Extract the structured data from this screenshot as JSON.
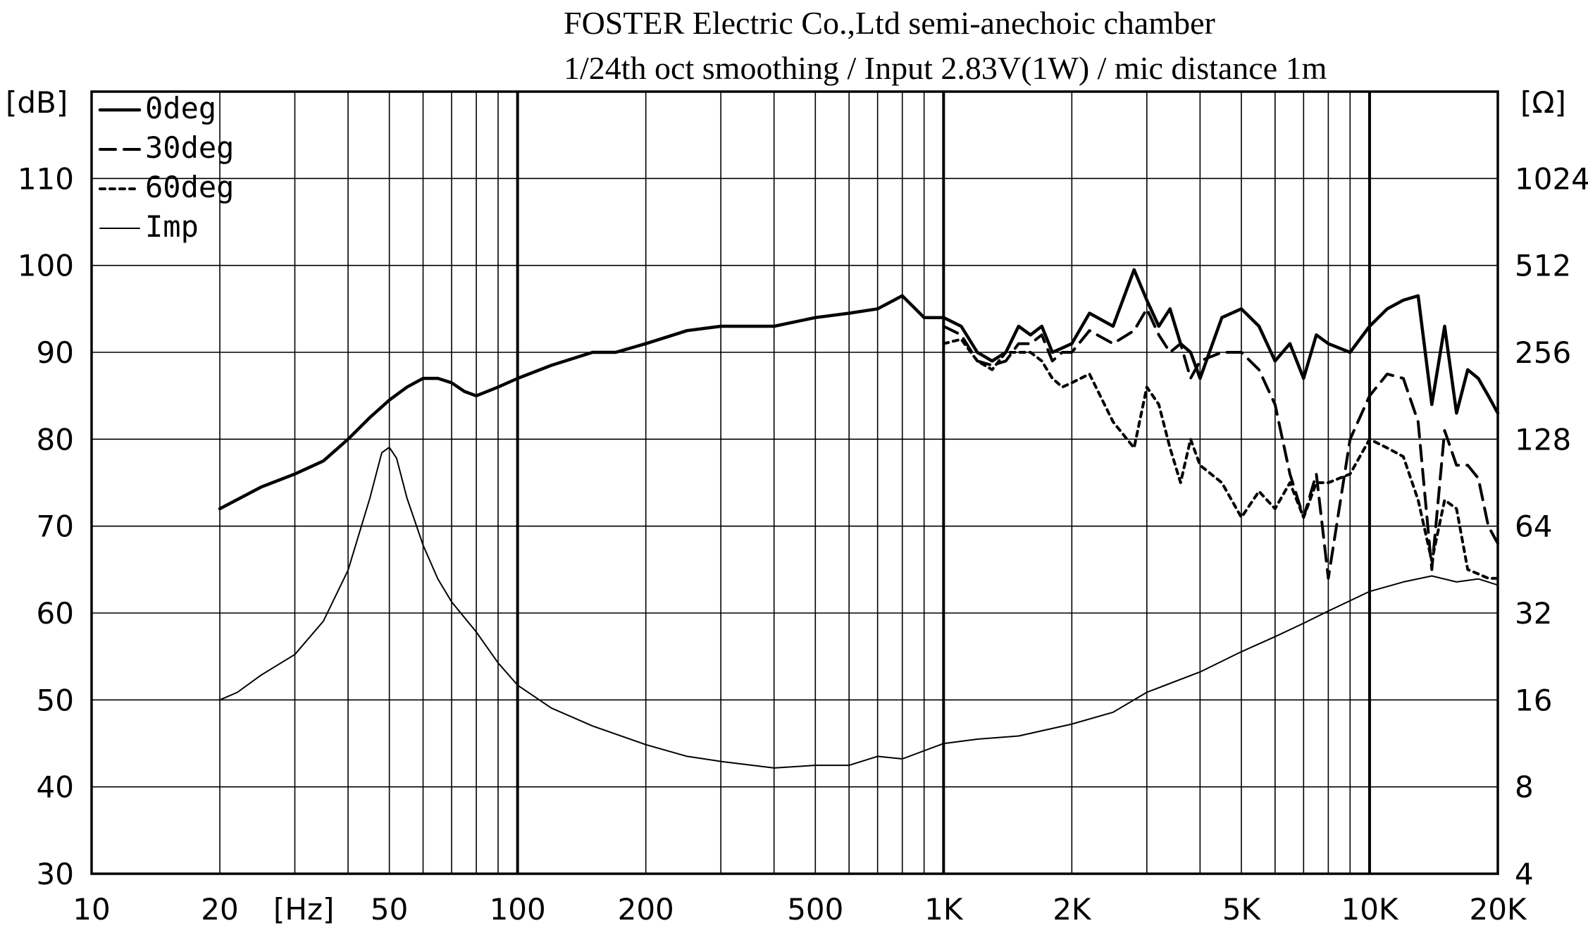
{
  "chart_data": {
    "type": "line",
    "title": "FOSTER Electric Co.,Ltd  semi-anechoic chamber",
    "subtitle": "1/24th oct smoothing / Input 2.83V(1W) / mic distance 1m",
    "xlabel": "[Hz]",
    "ylabel": "[dB]",
    "y2label": "[Ω]",
    "x_scale": "log",
    "xlim": [
      10,
      20000
    ],
    "ylim": [
      30,
      120
    ],
    "y2lim": [
      4,
      2048
    ],
    "y2_scale": "log2",
    "grid": true,
    "legend_position": "top-left",
    "x_ticks": [
      {
        "value": 10,
        "label": "10"
      },
      {
        "value": 20,
        "label": "20"
      },
      {
        "value": 50,
        "label": "50"
      },
      {
        "value": 100,
        "label": "100"
      },
      {
        "value": 200,
        "label": "200"
      },
      {
        "value": 500,
        "label": "500"
      },
      {
        "value": 1000,
        "label": "1K"
      },
      {
        "value": 2000,
        "label": "2K"
      },
      {
        "value": 5000,
        "label": "5K"
      },
      {
        "value": 10000,
        "label": "10K"
      },
      {
        "value": 20000,
        "label": "20K"
      }
    ],
    "y_ticks": [
      {
        "value": 30,
        "label": "30"
      },
      {
        "value": 40,
        "label": "40"
      },
      {
        "value": 50,
        "label": "50"
      },
      {
        "value": 60,
        "label": "60"
      },
      {
        "value": 70,
        "label": "70"
      },
      {
        "value": 80,
        "label": "80"
      },
      {
        "value": 90,
        "label": "90"
      },
      {
        "value": 100,
        "label": "100"
      },
      {
        "value": 110,
        "label": "110"
      }
    ],
    "y2_ticks": [
      {
        "value": 4,
        "label": "4"
      },
      {
        "value": 8,
        "label": "8"
      },
      {
        "value": 16,
        "label": "16"
      },
      {
        "value": 32,
        "label": "32"
      },
      {
        "value": 64,
        "label": "64"
      },
      {
        "value": 128,
        "label": "128"
      },
      {
        "value": 256,
        "label": "256"
      },
      {
        "value": 512,
        "label": "512"
      },
      {
        "value": 1024,
        "label": "1024"
      }
    ],
    "series": [
      {
        "name": "0deg",
        "style": "solid-thick",
        "axis": "left",
        "x": [
          20,
          25,
          30,
          35,
          40,
          45,
          50,
          55,
          60,
          65,
          70,
          75,
          80,
          90,
          100,
          120,
          150,
          170,
          200,
          250,
          300,
          400,
          500,
          600,
          700,
          800,
          900,
          1000,
          1100,
          1200,
          1300,
          1400,
          1500,
          1600,
          1700,
          1800,
          1900,
          2000,
          2200,
          2500,
          2800,
          3000,
          3200,
          3400,
          3600,
          3800,
          4000,
          4500,
          5000,
          5500,
          6000,
          6500,
          7000,
          7500,
          8000,
          9000,
          10000,
          11000,
          12000,
          13000,
          14000,
          15000,
          16000,
          17000,
          18000,
          19000,
          20000
        ],
        "y": [
          72,
          74.5,
          76,
          77.5,
          80,
          82.5,
          84.5,
          86,
          87,
          87,
          86.5,
          85.5,
          85,
          86,
          87,
          88.5,
          90,
          90,
          91,
          92.5,
          93,
          93,
          94,
          94.5,
          95,
          96.5,
          94,
          94,
          93,
          90,
          89,
          90,
          93,
          92,
          93,
          90,
          90.5,
          91,
          94.5,
          93,
          99.5,
          96,
          93,
          95,
          91,
          90,
          87,
          94,
          95,
          93,
          89,
          91,
          87,
          92,
          91,
          90,
          93,
          95,
          96,
          96.5,
          84,
          93,
          83,
          88,
          87,
          85,
          83
        ]
      },
      {
        "name": "30deg",
        "style": "dashed",
        "axis": "left",
        "x": [
          1000,
          1100,
          1200,
          1300,
          1400,
          1500,
          1600,
          1700,
          1800,
          1900,
          2000,
          2200,
          2500,
          2800,
          3000,
          3200,
          3400,
          3600,
          3800,
          4000,
          4500,
          5000,
          5500,
          6000,
          6500,
          7000,
          7500,
          8000,
          9000,
          10000,
          11000,
          12000,
          13000,
          14000,
          15000,
          16000,
          17000,
          18000,
          19000,
          20000
        ],
        "y": [
          93,
          92,
          89,
          88.5,
          89,
          91,
          91,
          92,
          89,
          90,
          90,
          92.5,
          91,
          92.5,
          95,
          92,
          90,
          91,
          87,
          89,
          90,
          90,
          88,
          84,
          76,
          71,
          76,
          64,
          80,
          85,
          87.5,
          87,
          82,
          65,
          81,
          77,
          77,
          75.5,
          70,
          68
        ]
      },
      {
        "name": "60deg",
        "style": "dotted",
        "axis": "left",
        "x": [
          1000,
          1100,
          1200,
          1300,
          1400,
          1500,
          1600,
          1700,
          1800,
          1900,
          2000,
          2200,
          2500,
          2800,
          3000,
          3200,
          3400,
          3600,
          3800,
          4000,
          4500,
          5000,
          5500,
          6000,
          6500,
          7000,
          7500,
          8000,
          9000,
          10000,
          11000,
          12000,
          13000,
          14000,
          15000,
          16000,
          17000,
          18000,
          19000,
          20000
        ],
        "y": [
          91,
          91.5,
          89,
          88,
          90,
          90,
          90,
          89,
          87,
          86,
          86.5,
          87.5,
          82,
          79,
          86,
          84,
          79,
          75,
          80,
          77,
          75,
          71,
          74,
          72,
          75,
          71,
          75,
          75,
          76,
          80,
          79,
          78,
          73,
          66,
          73,
          72,
          65,
          64.5,
          64,
          64
        ]
      },
      {
        "name": "Imp",
        "style": "solid-thin",
        "axis": "right",
        "x": [
          20,
          22,
          25,
          30,
          35,
          40,
          45,
          48,
          50,
          52,
          55,
          60,
          65,
          70,
          80,
          90,
          100,
          120,
          150,
          200,
          250,
          300,
          400,
          500,
          600,
          700,
          800,
          1000,
          1200,
          1500,
          2000,
          2500,
          3000,
          4000,
          5000,
          6000,
          7000,
          8000,
          10000,
          12000,
          14000,
          16000,
          18000,
          20000
        ],
        "y": [
          16,
          17,
          19.5,
          23,
          30,
          45,
          80,
          115,
          120,
          110,
          80,
          55,
          42,
          35,
          27.5,
          21.5,
          18,
          15,
          13,
          11.2,
          10.2,
          9.8,
          9.3,
          9.5,
          9.5,
          10.2,
          10,
          11.3,
          11.7,
          12,
          13.2,
          14.5,
          17,
          20,
          23.5,
          26.5,
          29.5,
          32.5,
          38,
          41,
          43,
          41,
          42,
          40
        ]
      }
    ]
  }
}
